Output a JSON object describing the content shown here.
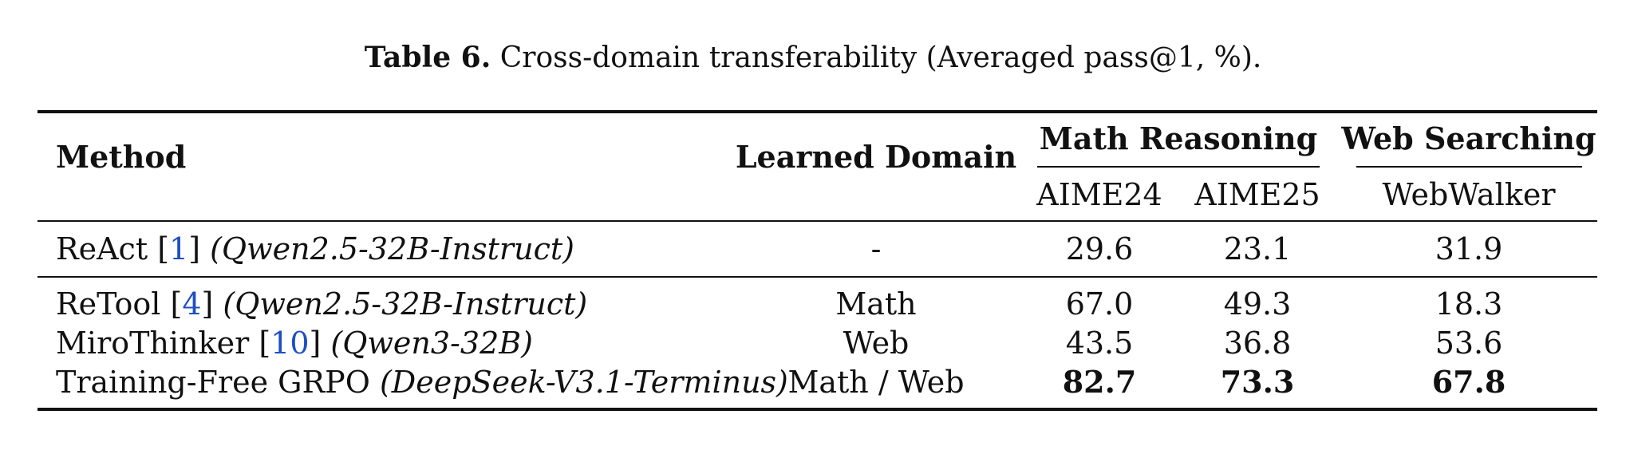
{
  "caption": {
    "label": "Table 6.",
    "text": "Cross-domain transferability (Averaged pass@1, %)."
  },
  "headers": {
    "method": "Method",
    "learned_domain": "Learned Domain",
    "math_group": "Math Reasoning",
    "web_group": "Web Searching",
    "aime24": "AIME24",
    "aime25": "AIME25",
    "webwalker": "WebWalker"
  },
  "rows": [
    {
      "name": "ReAct",
      "ref": "1",
      "model": "(Qwen2.5-32B-Instruct)",
      "domain": "-",
      "aime24": "29.6",
      "aime25": "23.1",
      "webwalker": "31.9",
      "bold": false
    },
    {
      "name": "ReTool",
      "ref": "4",
      "model": "(Qwen2.5-32B-Instruct)",
      "domain": "Math",
      "aime24": "67.0",
      "aime25": "49.3",
      "webwalker": "18.3",
      "bold": false
    },
    {
      "name": "MiroThinker",
      "ref": "10",
      "model": "(Qwen3-32B)",
      "domain": "Web",
      "aime24": "43.5",
      "aime25": "36.8",
      "webwalker": "53.6",
      "bold": false
    },
    {
      "name": "Training-Free GRPO",
      "ref": "",
      "model": "(DeepSeek-V3.1-Terminus)",
      "domain": "Math / Web",
      "aime24": "82.7",
      "aime25": "73.3",
      "webwalker": "67.8",
      "bold": true
    }
  ]
}
